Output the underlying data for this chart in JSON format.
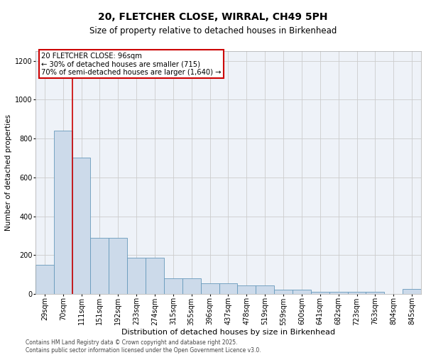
{
  "title1": "20, FLETCHER CLOSE, WIRRAL, CH49 5PH",
  "title2": "Size of property relative to detached houses in Birkenhead",
  "xlabel": "Distribution of detached houses by size in Birkenhead",
  "ylabel": "Number of detached properties",
  "categories": [
    "29sqm",
    "70sqm",
    "111sqm",
    "151sqm",
    "192sqm",
    "233sqm",
    "274sqm",
    "315sqm",
    "355sqm",
    "396sqm",
    "437sqm",
    "478sqm",
    "519sqm",
    "559sqm",
    "600sqm",
    "641sqm",
    "682sqm",
    "723sqm",
    "763sqm",
    "804sqm",
    "845sqm"
  ],
  "values": [
    150,
    840,
    700,
    290,
    290,
    185,
    185,
    80,
    80,
    55,
    55,
    42,
    42,
    20,
    20,
    10,
    10,
    10,
    10,
    0,
    25
  ],
  "bar_color": "#ccdaea",
  "bar_edge_color": "#6699bb",
  "redline_x": 1.5,
  "annotation_text": "20 FLETCHER CLOSE: 96sqm\n← 30% of detached houses are smaller (715)\n70% of semi-detached houses are larger (1,640) →",
  "annotation_box_facecolor": "#ffffff",
  "annotation_box_edgecolor": "#cc0000",
  "redline_color": "#cc0000",
  "grid_color": "#cccccc",
  "plot_bg_color": "#eef2f8",
  "footer_text": "Contains HM Land Registry data © Crown copyright and database right 2025.\nContains public sector information licensed under the Open Government Licence v3.0.",
  "ylim": [
    0,
    1250
  ],
  "yticks": [
    0,
    200,
    400,
    600,
    800,
    1000,
    1200
  ],
  "title1_fontsize": 10,
  "title2_fontsize": 8.5,
  "xlabel_fontsize": 8,
  "ylabel_fontsize": 7.5,
  "tick_fontsize": 7,
  "footer_fontsize": 5.5,
  "annot_fontsize": 7.2
}
